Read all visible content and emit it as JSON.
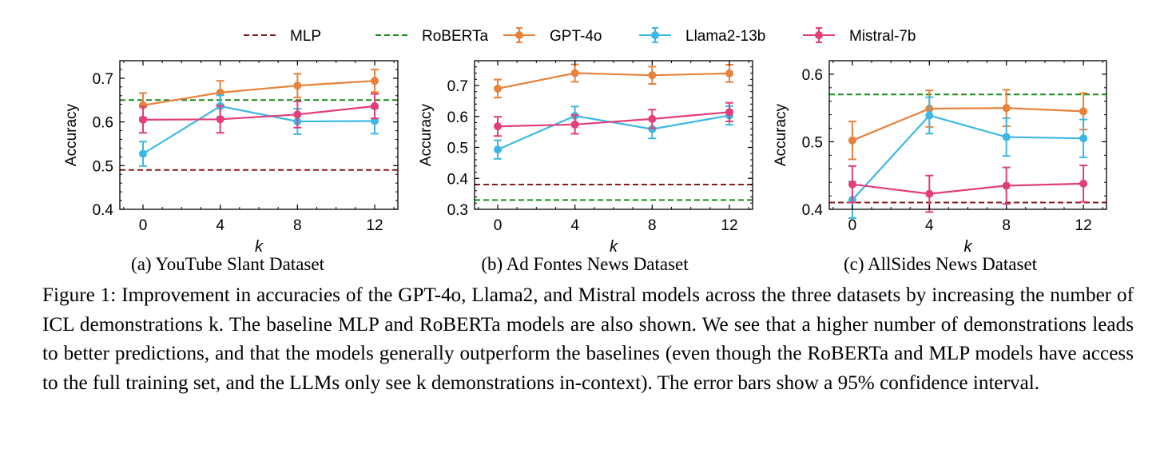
{
  "chart_data": [
    {
      "type": "line",
      "subcaption": "(a) YouTube Slant Dataset",
      "xlabel": "k",
      "ylabel": "Accuracy",
      "x": [
        0,
        4,
        8,
        12
      ],
      "xticks": [
        "0",
        "4",
        "8",
        "12"
      ],
      "xlim": [
        -1.2,
        13.2
      ],
      "ylim": [
        0.4,
        0.74
      ],
      "yticks": [
        "0.4",
        "0.5",
        "0.6",
        "0.7"
      ],
      "ytick_values": [
        0.4,
        0.5,
        0.6,
        0.7
      ],
      "baselines": [
        {
          "name": "MLP",
          "value": 0.49
        },
        {
          "name": "RoBERTa",
          "value": 0.65
        }
      ],
      "series": [
        {
          "name": "GPT-4o",
          "values": [
            0.638,
            0.667,
            0.683,
            0.694
          ],
          "errors": [
            0.028,
            0.027,
            0.027,
            0.026
          ]
        },
        {
          "name": "Llama2-13b",
          "values": [
            0.527,
            0.636,
            0.601,
            0.602
          ],
          "errors": [
            0.028,
            0.025,
            0.029,
            0.029
          ]
        },
        {
          "name": "Mistral-7b",
          "values": [
            0.605,
            0.606,
            0.617,
            0.636
          ],
          "errors": [
            0.03,
            0.031,
            0.03,
            0.028
          ]
        }
      ]
    },
    {
      "type": "line",
      "subcaption": "(b) Ad Fontes News Dataset",
      "xlabel": "k",
      "ylabel": "Accuracy",
      "x": [
        0,
        4,
        8,
        12
      ],
      "xticks": [
        "0",
        "4",
        "8",
        "12"
      ],
      "xlim": [
        -1.2,
        13.2
      ],
      "ylim": [
        0.3,
        0.78
      ],
      "yticks": [
        "0.3",
        "0.4",
        "0.5",
        "0.6",
        "0.7"
      ],
      "ytick_values": [
        0.3,
        0.4,
        0.5,
        0.6,
        0.7
      ],
      "baselines": [
        {
          "name": "MLP",
          "value": 0.38
        },
        {
          "name": "RoBERTa",
          "value": 0.33
        }
      ],
      "series": [
        {
          "name": "GPT-4o",
          "values": [
            0.69,
            0.74,
            0.733,
            0.739
          ],
          "errors": [
            0.029,
            0.028,
            0.028,
            0.028
          ]
        },
        {
          "name": "Llama2-13b",
          "values": [
            0.493,
            0.602,
            0.559,
            0.603
          ],
          "errors": [
            0.03,
            0.03,
            0.03,
            0.03
          ]
        },
        {
          "name": "Mistral-7b",
          "values": [
            0.568,
            0.574,
            0.592,
            0.614
          ],
          "errors": [
            0.031,
            0.03,
            0.03,
            0.03
          ]
        }
      ]
    },
    {
      "type": "line",
      "subcaption": "(c) AllSides News Dataset",
      "xlabel": "k",
      "ylabel": "Accuracy",
      "x": [
        0,
        4,
        8,
        12
      ],
      "xticks": [
        "0",
        "4",
        "8",
        "12"
      ],
      "xlim": [
        -1.2,
        13.2
      ],
      "ylim": [
        0.4,
        0.62
      ],
      "yticks": [
        "0.4",
        "0.5",
        "0.6"
      ],
      "ytick_values": [
        0.4,
        0.5,
        0.6
      ],
      "baselines": [
        {
          "name": "MLP",
          "value": 0.41
        },
        {
          "name": "RoBERTa",
          "value": 0.57
        }
      ],
      "series": [
        {
          "name": "GPT-4o",
          "values": [
            0.502,
            0.549,
            0.55,
            0.545
          ],
          "errors": [
            0.028,
            0.027,
            0.027,
            0.027
          ]
        },
        {
          "name": "Llama2-13b",
          "values": [
            0.414,
            0.539,
            0.507,
            0.505
          ],
          "errors": [
            0.027,
            0.027,
            0.028,
            0.028
          ]
        },
        {
          "name": "Mistral-7b",
          "values": [
            0.437,
            0.423,
            0.435,
            0.438
          ],
          "errors": [
            0.027,
            0.027,
            0.027,
            0.027
          ]
        }
      ]
    }
  ],
  "legend": {
    "placement": "top",
    "entries": [
      {
        "label": "MLP",
        "style": "dashed",
        "color": "#8b1a1a"
      },
      {
        "label": "RoBERTa",
        "style": "dashed",
        "color": "#1a8c1a"
      },
      {
        "label": "GPT-4o",
        "style": "errorbar",
        "color": "#e8823a"
      },
      {
        "label": "Llama2-13b",
        "style": "errorbar",
        "color": "#3db8e4"
      },
      {
        "label": "Mistral-7b",
        "style": "errorbar",
        "color": "#e23e7a"
      }
    ]
  },
  "colors": {
    "GPT-4o": "#e8823a",
    "Llama2-13b": "#3db8e4",
    "Mistral-7b": "#e23e7a",
    "MLP": "#8b1a1a",
    "RoBERTa": "#1a8c1a"
  },
  "caption": "Figure 1: Improvement in accuracies of the GPT-4o, Llama2, and Mistral models across the three datasets by increasing the number of ICL demonstrations k. The baseline MLP and RoBERTa models are also shown. We see that a higher number of demonstrations leads to better predictions, and that the models generally outperform the baselines (even though the RoBERTa and MLP models have access to the full training set, and the LLMs only see k demonstrations in-context). The error bars show a 95% confidence interval."
}
